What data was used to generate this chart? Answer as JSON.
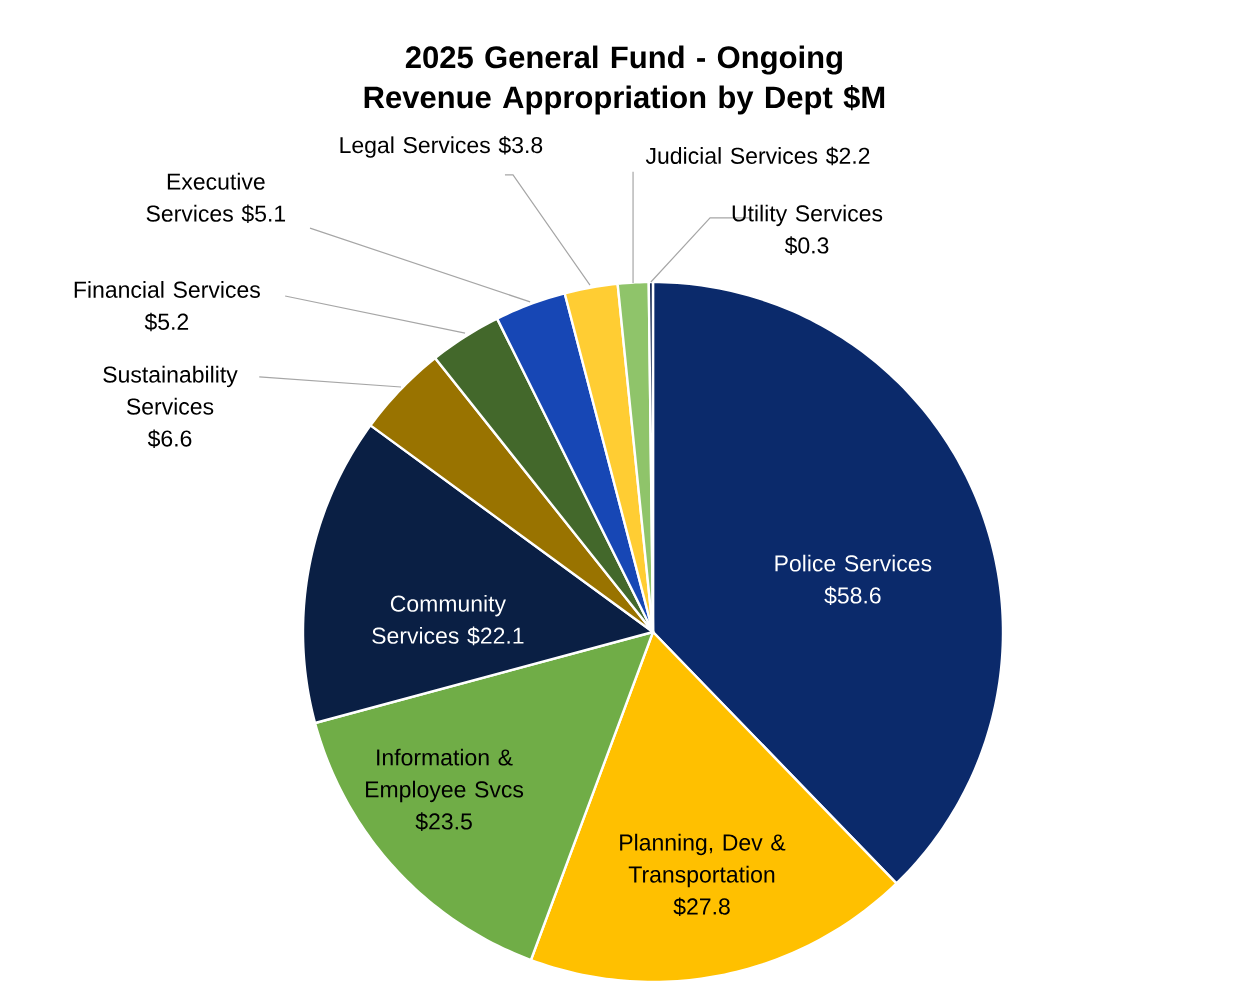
{
  "chart_data": {
    "type": "pie",
    "title": "2025 General Fund - Ongoing Revenue Appropriation by Dept $M",
    "categories": [
      "Police Services",
      "Planning, Dev & Transportation",
      "Information & Employee Svcs",
      "Community Services",
      "Sustainability Services",
      "Financial Services",
      "Executive Services",
      "Legal Services",
      "Judicial Services",
      "Utility Services"
    ],
    "values": [
      58.6,
      27.8,
      23.5,
      22.1,
      6.6,
      5.2,
      5.1,
      3.8,
      2.2,
      0.3
    ],
    "value_labels": [
      "$58.6",
      "$27.8",
      "$23.5",
      "$22.1",
      "$6.6",
      "$5.2",
      "$5.1",
      "$3.8",
      "$2.2",
      "$0.3"
    ],
    "colors": [
      "#0b2a6b",
      "#ffc000",
      "#70ad47",
      "#0a1f44",
      "#997300",
      "#43682b",
      "#1747b5",
      "#ffcd33",
      "#8fc46a",
      "#1a2e5a"
    ]
  }
}
